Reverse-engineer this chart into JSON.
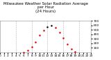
{
  "title": "Milwaukee Weather Solar Radiation Average\nper Hour\n(24 Hours)",
  "hours": [
    0,
    1,
    2,
    3,
    4,
    5,
    6,
    7,
    8,
    9,
    10,
    11,
    12,
    13,
    14,
    15,
    16,
    17,
    18,
    19,
    20,
    21,
    22,
    23
  ],
  "values": [
    0,
    0,
    0,
    0,
    0,
    0,
    2,
    38,
    125,
    235,
    375,
    490,
    570,
    600,
    555,
    450,
    325,
    185,
    65,
    8,
    0,
    0,
    0,
    0
  ],
  "black_hours": [
    12,
    13
  ],
  "dot_color_red": "#dd0000",
  "dot_color_black": "#000000",
  "bg_color": "#ffffff",
  "plot_bg_color": "#ffffff",
  "grid_color": "#aaaaaa",
  "title_color": "#000000",
  "ylim": [
    0,
    700
  ],
  "xlim": [
    0,
    23
  ],
  "ytick_values": [
    100,
    200,
    300,
    400,
    500,
    600,
    700
  ],
  "xtick_values": [
    0,
    1,
    2,
    3,
    4,
    5,
    6,
    7,
    8,
    9,
    10,
    11,
    12,
    13,
    14,
    15,
    16,
    17,
    18,
    19,
    20,
    21,
    22,
    23
  ],
  "grid_x_positions": [
    4,
    8,
    12,
    16,
    20
  ],
  "title_fontsize": 4.0,
  "tick_fontsize": 3.2,
  "marker_size": 1.8,
  "linewidth": 0.4
}
